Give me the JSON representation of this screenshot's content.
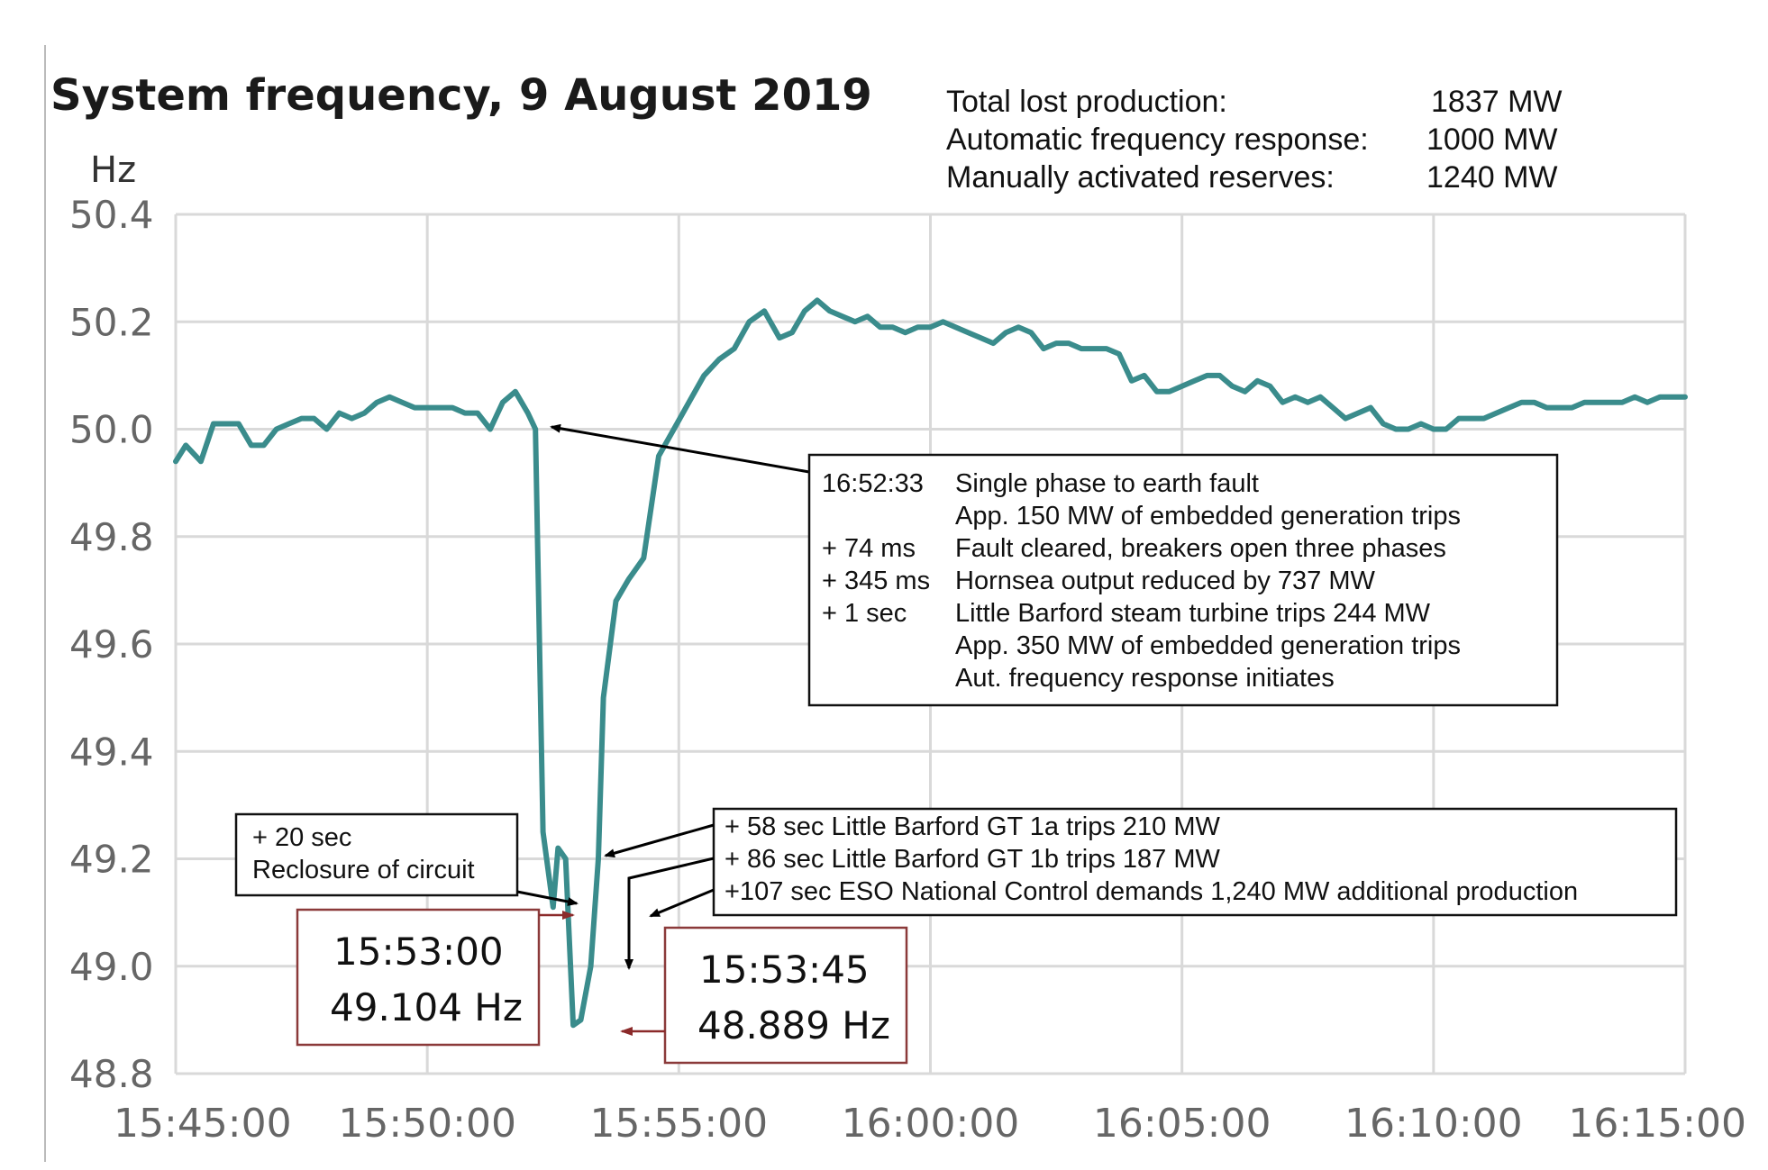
{
  "chart_data": {
    "type": "line",
    "title": "System frequency, 9 August 2019",
    "ylabel": "Hz",
    "xlabel": "",
    "ylim": [
      48.8,
      50.4
    ],
    "yticks": [
      "50.4",
      "50.2",
      "50.0",
      "49.8",
      "49.6",
      "49.4",
      "49.2",
      "49.0",
      "48.8"
    ],
    "xticks": [
      "15:45:00",
      "15:50:00",
      "15:55:00",
      "16:00:00",
      "16:05:00",
      "16:10:00",
      "16:15:00"
    ],
    "xlim_minutes_after_1545": [
      0,
      30
    ],
    "grid": true,
    "series_color": "#3a8c8c",
    "x_minutes": [
      0,
      0.2,
      0.5,
      0.75,
      1,
      1.25,
      1.5,
      1.75,
      2,
      2.25,
      2.5,
      2.75,
      3,
      3.25,
      3.5,
      3.75,
      4,
      4.25,
      4.5,
      4.75,
      5,
      5.25,
      5.5,
      5.75,
      6,
      6.25,
      6.5,
      6.75,
      7,
      7.1,
      7.15,
      7.3,
      7.5,
      7.6,
      7.75,
      7.9,
      8.05,
      8.25,
      8.4,
      8.5,
      8.75,
      9,
      9.3,
      9.6,
      9.9,
      10.2,
      10.5,
      10.8,
      11.1,
      11.4,
      11.7,
      12,
      12.25,
      12.5,
      12.75,
      13,
      13.25,
      13.5,
      13.75,
      14,
      14.25,
      14.5,
      14.75,
      15,
      15.25,
      15.5,
      15.75,
      16,
      16.25,
      16.5,
      16.75,
      17,
      17.25,
      17.5,
      17.75,
      18,
      18.25,
      18.5,
      18.75,
      19,
      19.25,
      19.5,
      19.75,
      20,
      20.25,
      20.5,
      20.75,
      21,
      21.25,
      21.5,
      21.75,
      22,
      22.25,
      22.5,
      22.75,
      23,
      23.25,
      23.5,
      23.75,
      24,
      24.25,
      24.5,
      24.75,
      25,
      25.25,
      25.5,
      25.75,
      26,
      26.25,
      26.5,
      26.75,
      27,
      27.25,
      27.5,
      27.75,
      28,
      28.25,
      28.5,
      28.75,
      29,
      29.25,
      29.5,
      29.75,
      30
    ],
    "values": [
      49.94,
      49.97,
      49.94,
      50.01,
      50.01,
      50.01,
      49.97,
      49.97,
      50.0,
      50.01,
      50.02,
      50.02,
      50.0,
      50.03,
      50.02,
      50.03,
      50.05,
      50.06,
      50.05,
      50.04,
      50.04,
      50.04,
      50.04,
      50.03,
      50.03,
      50.0,
      50.05,
      50.07,
      50.03,
      50.01,
      50.0,
      49.25,
      49.11,
      49.22,
      49.2,
      48.89,
      48.9,
      49.0,
      49.2,
      49.5,
      49.68,
      49.72,
      49.76,
      49.95,
      50.0,
      50.05,
      50.1,
      50.13,
      50.15,
      50.2,
      50.22,
      50.17,
      50.18,
      50.22,
      50.24,
      50.22,
      50.21,
      50.2,
      50.21,
      50.19,
      50.19,
      50.18,
      50.19,
      50.19,
      50.2,
      50.19,
      50.18,
      50.17,
      50.16,
      50.18,
      50.19,
      50.18,
      50.15,
      50.16,
      50.16,
      50.15,
      50.15,
      50.15,
      50.14,
      50.09,
      50.1,
      50.07,
      50.07,
      50.08,
      50.09,
      50.1,
      50.1,
      50.08,
      50.07,
      50.09,
      50.08,
      50.05,
      50.06,
      50.05,
      50.06,
      50.04,
      50.02,
      50.03,
      50.04,
      50.01,
      50.0,
      50.0,
      50.01,
      50.0,
      50.0,
      50.02,
      50.02,
      50.02,
      50.03,
      50.04,
      50.05,
      50.05,
      50.04,
      50.04,
      50.04,
      50.05,
      50.05,
      50.05,
      50.05,
      50.06,
      50.05,
      50.06,
      50.06,
      50.06
    ]
  },
  "summary": [
    {
      "label": "Total lost production:",
      "value": "1837 MW"
    },
    {
      "label": "Automatic frequency response:",
      "value": "1000 MW"
    },
    {
      "label": "Manually activated reserves:",
      "value": "1240 MW"
    }
  ],
  "event_box": {
    "rows": [
      {
        "time": "16:52:33",
        "text": "Single phase to earth fault"
      },
      {
        "time": "",
        "text": "App. 150 MW of embedded generation trips"
      },
      {
        "time": "+ 74 ms",
        "text": "Fault cleared, breakers open three phases"
      },
      {
        "time": "+ 345 ms",
        "text": "Hornsea output reduced by 737 MW"
      },
      {
        "time": "+ 1 sec",
        "text": "Little Barford steam turbine trips 244 MW"
      },
      {
        "time": "",
        "text": "App. 350 MW of embedded generation trips"
      },
      {
        "time": "",
        "text": "Aut. frequency response initiates"
      }
    ]
  },
  "reclosure_box": {
    "line1": "+ 20 sec",
    "line2": "Reclosure of circuit"
  },
  "trips_box": {
    "lines": [
      "+ 58 sec Little Barford GT 1a trips 210 MW",
      "+ 86 sec Little Barford GT 1b trips 187 MW",
      "+107 sec ESO National Control demands 1,240 MW additional production"
    ]
  },
  "point1": {
    "time": "15:53:00",
    "value": "49.104 Hz"
  },
  "point2": {
    "time": "15:53:45",
    "value": "48.889 Hz"
  }
}
